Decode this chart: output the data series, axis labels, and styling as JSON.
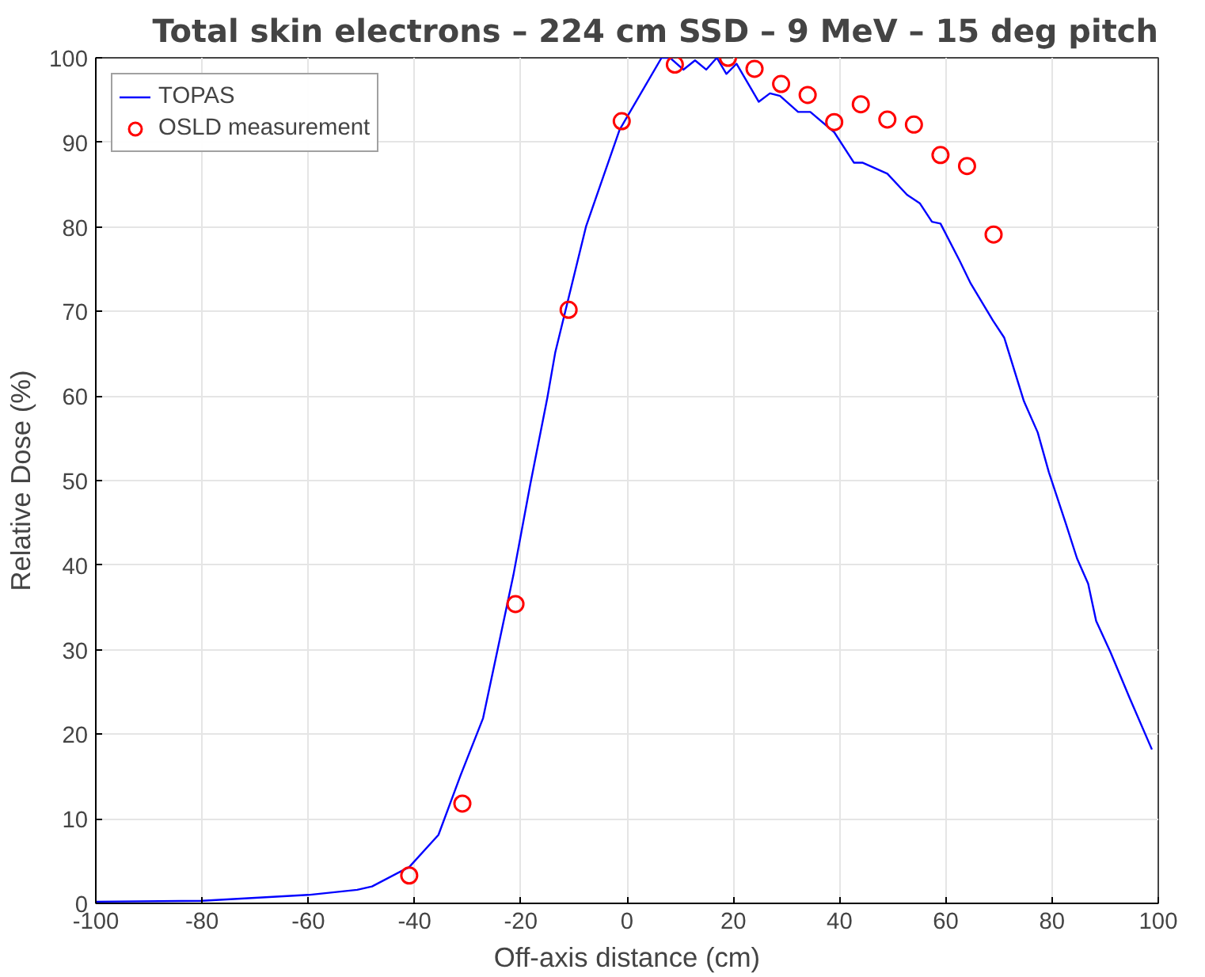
{
  "chart_data": {
    "type": "line",
    "title": "Total skin electrons – 224 cm SSD – 9 MeV – 15 deg pitch",
    "xlabel": "Off-axis distance (cm)",
    "ylabel": "Relative Dose (%)",
    "xlim": [
      -100,
      100
    ],
    "xticks": [
      -100,
      -80,
      -60,
      -40,
      -20,
      0,
      20,
      40,
      60,
      80,
      100
    ],
    "ylim": [
      0,
      100
    ],
    "yticks": [
      0,
      10,
      20,
      30,
      40,
      50,
      60,
      70,
      80,
      90,
      100
    ],
    "grid": true,
    "legend": "top left",
    "series": [
      {
        "name": "TOPAS",
        "color": "#0000ff",
        "line_style": "solid",
        "x": [
          -100,
          -80,
          -60,
          -50.8,
          -48,
          -41,
          -35.5,
          -31.3,
          -27.1,
          -21.4,
          -18.2,
          -15,
          -13.5,
          -7.7,
          -1.4,
          6.5,
          8.1,
          10.6,
          12.8,
          14.9,
          16.9,
          18.7,
          20.6,
          24.8,
          26.9,
          28.8,
          32.2,
          34.5,
          39,
          42.7,
          44.3,
          49,
          52.7,
          55.1,
          57.4,
          59,
          62.6,
          64.7,
          68.9,
          71,
          74.7,
          77.3,
          79.4,
          82.6,
          84.7,
          86.8,
          88.3,
          91,
          94.6,
          98.8
        ],
        "values": [
          0.2,
          0.3,
          1,
          1.6,
          2,
          4.3,
          8.1,
          15.2,
          21.9,
          38.8,
          49.6,
          59.8,
          65.2,
          80.1,
          91.5,
          100,
          100,
          98.6,
          99.7,
          98.6,
          100,
          98.1,
          99.3,
          94.8,
          95.8,
          95.5,
          93.6,
          93.6,
          91.2,
          87.6,
          87.6,
          86.3,
          83.8,
          82.8,
          80.6,
          80.4,
          76,
          73.3,
          68.9,
          66.9,
          59.4,
          55.7,
          51,
          44.9,
          40.8,
          37.8,
          33.4,
          29.7,
          24.3,
          18.2
        ]
      },
      {
        "name": "OSLD measurement",
        "type": "scatter",
        "color": "#ff0000",
        "marker": "circle",
        "x": [
          -41,
          -31,
          -21,
          -11,
          -1,
          9,
          19,
          24,
          29,
          34,
          39,
          44,
          49,
          54,
          59,
          64,
          69
        ],
        "values": [
          3.3,
          11.8,
          35.4,
          70.2,
          92.5,
          99.2,
          100,
          98.7,
          96.9,
          95.6,
          92.4,
          94.5,
          92.7,
          92.1,
          88.5,
          87.2,
          79.1
        ]
      }
    ]
  }
}
